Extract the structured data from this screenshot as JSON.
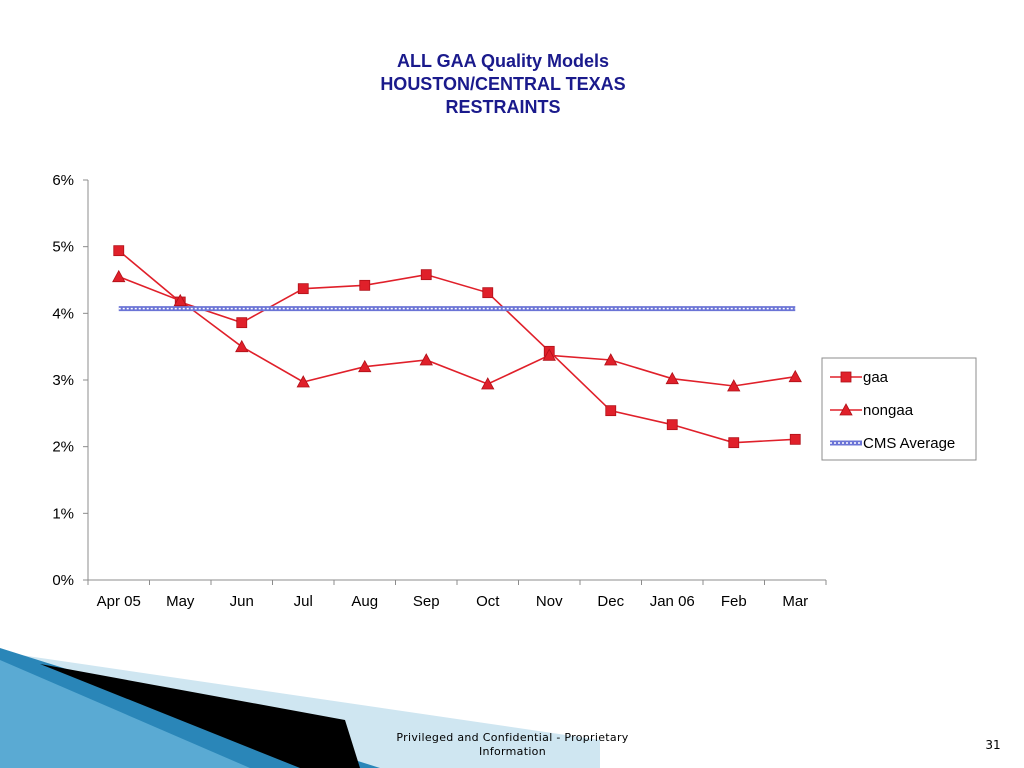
{
  "slide": {
    "footer": "Privileged and Confidential - Proprietary Information",
    "page_number": "31"
  },
  "colors": {
    "title": "#1a1a8c",
    "series_red": "#e0202a",
    "cms_line": "#6b74d6",
    "decor_dark_blue": "#1f6d99",
    "decor_light_blue": "#cfe6f1",
    "decor_black": "#000000"
  },
  "chart_data": {
    "type": "line",
    "title_lines": [
      "ALL GAA Quality Models",
      "HOUSTON/CENTRAL TEXAS",
      "RESTRAINTS"
    ],
    "categories": [
      "Apr 05",
      "May",
      "Jun",
      "Jul",
      "Aug",
      "Sep",
      "Oct",
      "Nov",
      "Dec",
      "Jan 06",
      "Feb",
      "Mar"
    ],
    "y_ticks": [
      "0%",
      "1%",
      "2%",
      "3%",
      "4%",
      "5%",
      "6%"
    ],
    "ylim": [
      0,
      6
    ],
    "y_unit": "%",
    "grid": false,
    "legend_position": "right",
    "series": [
      {
        "name": "gaa",
        "marker": "square",
        "color": "#e0202a",
        "values": [
          4.94,
          4.17,
          3.86,
          4.37,
          4.42,
          4.58,
          4.31,
          3.43,
          2.54,
          2.33,
          2.06,
          2.11
        ]
      },
      {
        "name": "nongaa",
        "marker": "triangle",
        "color": "#e0202a",
        "values": [
          4.55,
          4.19,
          3.5,
          2.97,
          3.2,
          3.3,
          2.94,
          3.37,
          3.3,
          3.02,
          2.91,
          3.05
        ]
      },
      {
        "name": "CMS Average",
        "marker": "none",
        "color": "#6b74d6",
        "values": [
          4.07,
          4.07,
          4.07,
          4.07,
          4.07,
          4.07,
          4.07,
          4.07,
          4.07,
          4.07,
          4.07,
          4.07
        ]
      }
    ]
  }
}
